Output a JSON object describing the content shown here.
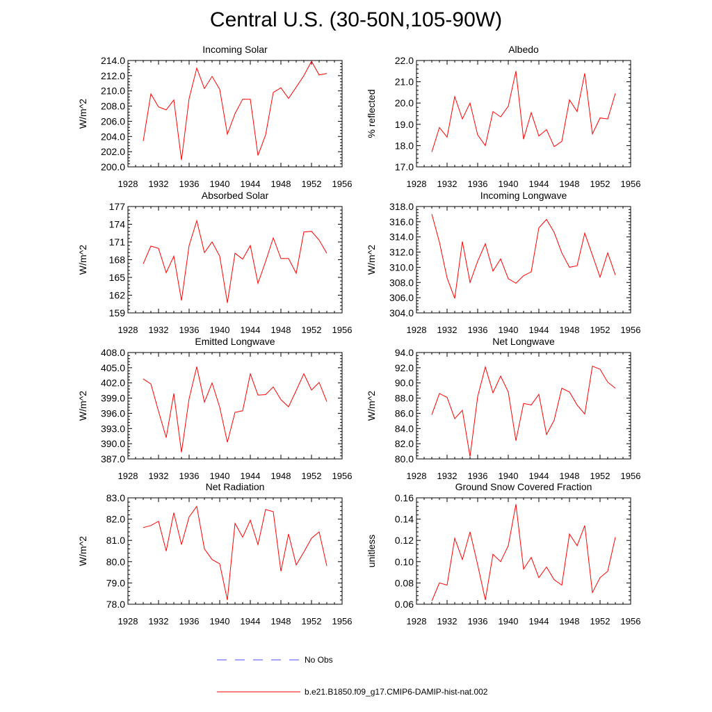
{
  "page_title": "Central U.S. (30-50N,105-90W)",
  "line_color": "#ff0000",
  "obs_color": "#4a4aff",
  "legend": {
    "obs_label": "No Obs",
    "model_label": "b.e21.B1850.f09_g17.CMIP6-DAMIP-hist-nat.002"
  },
  "chart_data": [
    {
      "type": "line",
      "title": "Incoming Solar",
      "ylabel": "W/m^2",
      "xlim": [
        1928,
        1956
      ],
      "ylim": [
        200,
        214
      ],
      "xticks": [
        "1928",
        "1932",
        "1936",
        "1940",
        "1944",
        "1948",
        "1952",
        "1956"
      ],
      "yticks": [
        "200.0",
        "202.0",
        "204.0",
        "206.0",
        "208.0",
        "210.0",
        "212.0",
        "214.0"
      ],
      "x": [
        1930,
        1931,
        1932,
        1933,
        1934,
        1935,
        1936,
        1937,
        1938,
        1939,
        1940,
        1941,
        1942,
        1943,
        1944,
        1945,
        1946,
        1947,
        1948,
        1949,
        1950,
        1951,
        1952,
        1953,
        1954
      ],
      "values": [
        203.4,
        209.6,
        207.9,
        207.5,
        208.8,
        200.9,
        209.0,
        213.0,
        210.3,
        211.9,
        210.2,
        204.3,
        207.0,
        208.9,
        208.9,
        201.5,
        204.2,
        209.8,
        210.4,
        209.0,
        210.5,
        212.0,
        213.9,
        212.1,
        212.3
      ]
    },
    {
      "type": "line",
      "title": "Albedo",
      "ylabel": "% reflected",
      "xlim": [
        1928,
        1956
      ],
      "ylim": [
        17,
        22
      ],
      "xticks": [
        "1928",
        "1932",
        "1936",
        "1940",
        "1944",
        "1948",
        "1952",
        "1956"
      ],
      "yticks": [
        "17.0",
        "18.0",
        "19.0",
        "20.0",
        "21.0",
        "22.0"
      ],
      "x": [
        1930,
        1931,
        1932,
        1933,
        1934,
        1935,
        1936,
        1937,
        1938,
        1939,
        1940,
        1941,
        1942,
        1943,
        1944,
        1945,
        1946,
        1947,
        1948,
        1949,
        1950,
        1951,
        1952,
        1953,
        1954
      ],
      "values": [
        17.7,
        18.85,
        18.4,
        20.3,
        19.25,
        20.0,
        18.5,
        18.0,
        19.6,
        19.35,
        19.85,
        21.5,
        18.3,
        19.55,
        18.45,
        18.75,
        17.95,
        18.2,
        20.15,
        19.6,
        21.4,
        18.55,
        19.3,
        19.25,
        20.45
      ]
    },
    {
      "type": "line",
      "title": "Absorbed Solar",
      "ylabel": "W/m^2",
      "xlim": [
        1928,
        1956
      ],
      "ylim": [
        159,
        177
      ],
      "xticks": [
        "1928",
        "1932",
        "1936",
        "1940",
        "1944",
        "1948",
        "1952",
        "1956"
      ],
      "yticks": [
        "159",
        "162",
        "165",
        "168",
        "171",
        "174",
        "177"
      ],
      "x": [
        1930,
        1931,
        1932,
        1933,
        1934,
        1935,
        1936,
        1937,
        1938,
        1939,
        1940,
        1941,
        1942,
        1943,
        1944,
        1945,
        1946,
        1947,
        1948,
        1949,
        1950,
        1951,
        1952,
        1953,
        1954
      ],
      "values": [
        167.3,
        170.3,
        169.9,
        165.8,
        168.6,
        161.1,
        170.4,
        174.6,
        169.2,
        171.0,
        168.6,
        160.7,
        169.1,
        168.1,
        170.4,
        164.0,
        167.7,
        171.7,
        168.2,
        168.2,
        165.7,
        172.7,
        172.8,
        171.3,
        169.1
      ]
    },
    {
      "type": "line",
      "title": "Incoming Longwave",
      "ylabel": "W/m^2",
      "xlim": [
        1928,
        1956
      ],
      "ylim": [
        304,
        318
      ],
      "xticks": [
        "1928",
        "1932",
        "1936",
        "1940",
        "1944",
        "1948",
        "1952",
        "1956"
      ],
      "yticks": [
        "304.0",
        "306.0",
        "308.0",
        "310.0",
        "312.0",
        "314.0",
        "316.0",
        "318.0"
      ],
      "x": [
        1930,
        1931,
        1932,
        1933,
        1934,
        1935,
        1936,
        1937,
        1938,
        1939,
        1940,
        1941,
        1942,
        1943,
        1944,
        1945,
        1946,
        1947,
        1948,
        1949,
        1950,
        1951,
        1952,
        1953,
        1954
      ],
      "values": [
        317.0,
        313.3,
        308.6,
        305.9,
        313.4,
        308.0,
        310.8,
        313.1,
        309.5,
        311.1,
        308.5,
        307.9,
        308.9,
        309.4,
        315.2,
        316.3,
        314.6,
        311.9,
        310.0,
        310.2,
        314.5,
        311.6,
        308.7,
        311.9,
        309.0
      ]
    },
    {
      "type": "line",
      "title": "Emitted Longwave",
      "ylabel": "W/m^2",
      "xlim": [
        1928,
        1956
      ],
      "ylim": [
        387,
        408
      ],
      "xticks": [
        "1928",
        "1932",
        "1936",
        "1940",
        "1944",
        "1948",
        "1952",
        "1956"
      ],
      "yticks": [
        "387.0",
        "390.0",
        "393.0",
        "396.0",
        "399.0",
        "402.0",
        "405.0",
        "408.0"
      ],
      "x": [
        1930,
        1931,
        1932,
        1933,
        1934,
        1935,
        1936,
        1937,
        1938,
        1939,
        1940,
        1941,
        1942,
        1943,
        1944,
        1945,
        1946,
        1947,
        1948,
        1949,
        1950,
        1951,
        1952,
        1953,
        1954
      ],
      "values": [
        402.8,
        401.8,
        396.4,
        391.2,
        399.9,
        388.3,
        398.9,
        405.2,
        398.2,
        402.0,
        397.2,
        390.3,
        396.2,
        396.5,
        403.8,
        399.6,
        399.7,
        401.2,
        398.7,
        397.3,
        400.5,
        403.8,
        400.6,
        402.1,
        398.3
      ]
    },
    {
      "type": "line",
      "title": "Net Longwave",
      "ylabel": "W/m^2",
      "xlim": [
        1928,
        1956
      ],
      "ylim": [
        80,
        94
      ],
      "xticks": [
        "1928",
        "1932",
        "1936",
        "1940",
        "1944",
        "1948",
        "1952",
        "1956"
      ],
      "yticks": [
        "80.0",
        "82.0",
        "84.0",
        "86.0",
        "88.0",
        "90.0",
        "92.0",
        "94.0"
      ],
      "x": [
        1930,
        1931,
        1932,
        1933,
        1934,
        1935,
        1936,
        1937,
        1938,
        1939,
        1940,
        1941,
        1942,
        1943,
        1944,
        1945,
        1946,
        1947,
        1948,
        1949,
        1950,
        1951,
        1952,
        1953,
        1954
      ],
      "values": [
        85.8,
        88.6,
        88.1,
        85.3,
        86.4,
        80.3,
        88.2,
        92.1,
        88.7,
        90.9,
        88.8,
        82.4,
        87.3,
        87.1,
        88.5,
        83.2,
        85.1,
        89.3,
        88.8,
        87.1,
        85.9,
        92.2,
        91.8,
        90.1,
        89.3
      ]
    },
    {
      "type": "line",
      "title": "Net Radiation",
      "ylabel": "W/m^2",
      "xlim": [
        1928,
        1956
      ],
      "ylim": [
        78,
        83
      ],
      "xticks": [
        "1928",
        "1932",
        "1936",
        "1940",
        "1944",
        "1948",
        "1952",
        "1956"
      ],
      "yticks": [
        "78.0",
        "79.0",
        "80.0",
        "81.0",
        "82.0",
        "83.0"
      ],
      "x": [
        1930,
        1931,
        1932,
        1933,
        1934,
        1935,
        1936,
        1937,
        1938,
        1939,
        1940,
        1941,
        1942,
        1943,
        1944,
        1945,
        1946,
        1947,
        1948,
        1949,
        1950,
        1951,
        1952,
        1953,
        1954
      ],
      "values": [
        81.6,
        81.7,
        81.9,
        80.5,
        82.3,
        80.8,
        82.1,
        82.6,
        80.6,
        80.1,
        79.9,
        78.2,
        81.8,
        81.15,
        81.95,
        80.8,
        82.45,
        82.35,
        79.55,
        81.3,
        79.85,
        80.45,
        81.1,
        81.4,
        79.8
      ]
    },
    {
      "type": "line",
      "title": "Ground Snow Covered Fraction",
      "ylabel": "unitless",
      "xlim": [
        1928,
        1956
      ],
      "ylim": [
        0.06,
        0.16
      ],
      "xticks": [
        "1928",
        "1932",
        "1936",
        "1940",
        "1944",
        "1948",
        "1952",
        "1956"
      ],
      "yticks": [
        "0.06",
        "0.08",
        "0.10",
        "0.12",
        "0.14",
        "0.16"
      ],
      "x": [
        1930,
        1931,
        1932,
        1933,
        1934,
        1935,
        1936,
        1937,
        1938,
        1939,
        1940,
        1941,
        1942,
        1943,
        1944,
        1945,
        1946,
        1947,
        1948,
        1949,
        1950,
        1951,
        1952,
        1953,
        1954
      ],
      "values": [
        0.063,
        0.08,
        0.078,
        0.122,
        0.102,
        0.128,
        0.097,
        0.064,
        0.107,
        0.1,
        0.115,
        0.154,
        0.093,
        0.104,
        0.085,
        0.095,
        0.083,
        0.078,
        0.126,
        0.115,
        0.134,
        0.071,
        0.085,
        0.091,
        0.123
      ]
    }
  ]
}
